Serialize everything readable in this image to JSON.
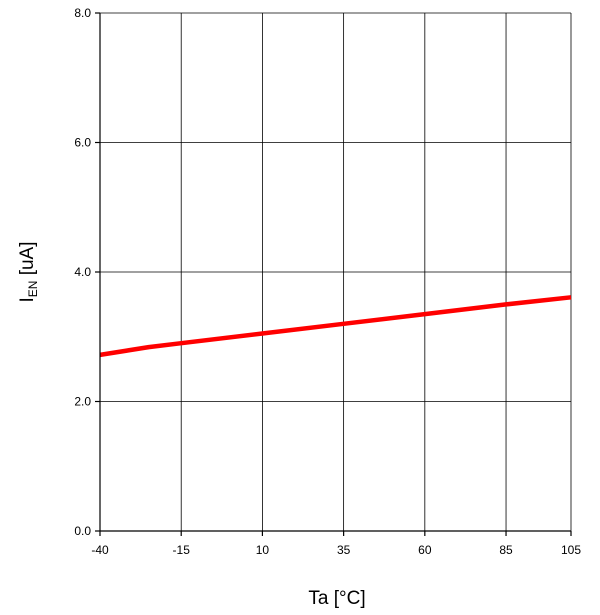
{
  "chart_data": {
    "type": "line",
    "title": "",
    "xlabel": "Ta [°C]",
    "ylabel": {
      "main": "I",
      "subscript": "EN",
      "unit": " [uA]"
    },
    "xlim": [
      -40,
      105
    ],
    "ylim": [
      0,
      8
    ],
    "xticks": [
      -40,
      -15,
      10,
      35,
      60,
      85,
      105
    ],
    "xtick_labels": [
      "-40",
      "-15",
      "10",
      "35",
      "60",
      "85",
      "105"
    ],
    "yticks": [
      0,
      2,
      4,
      6,
      8
    ],
    "ytick_labels": [
      "0.0",
      "2.0",
      "4.0",
      "6.0",
      "8.0"
    ],
    "grid": true,
    "series": [
      {
        "color": "#ff0000",
        "x": [
          -40,
          -25,
          -15,
          10,
          35,
          60,
          85,
          105
        ],
        "y": [
          2.72,
          2.84,
          2.9,
          3.05,
          3.2,
          3.35,
          3.5,
          3.61
        ]
      }
    ]
  }
}
